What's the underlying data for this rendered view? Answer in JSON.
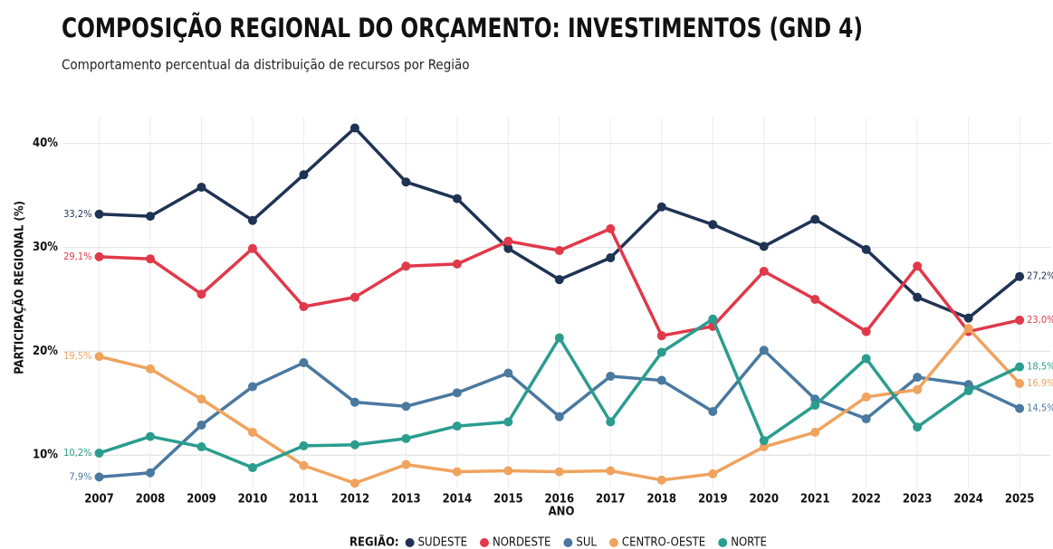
{
  "chart_data": {
    "type": "line",
    "title": "COMPOSIÇÃO REGIONAL DO ORÇAMENTO: INVESTIMENTOS (GND 4)",
    "subtitle": "Comportamento percentual da distribuição de recursos por Região",
    "x_label": "ANO",
    "y_label": "PARTICIPAÇÃO REGIONAL (%)",
    "legend_title": "REGIÃO:",
    "x": [
      2007,
      2008,
      2009,
      2010,
      2011,
      2012,
      2013,
      2014,
      2015,
      2016,
      2017,
      2018,
      2019,
      2020,
      2021,
      2022,
      2023,
      2024,
      2025
    ],
    "xlim": [
      2006.3,
      2025.6
    ],
    "xticks": [
      2007,
      2008,
      2009,
      2010,
      2011,
      2012,
      2013,
      2014,
      2015,
      2016,
      2017,
      2018,
      2019,
      2020,
      2021,
      2022,
      2023,
      2024,
      2025
    ],
    "ylim": [
      6.8,
      42.5
    ],
    "yticks": [
      {
        "value": 10,
        "label": "10%"
      },
      {
        "value": 20,
        "label": "20%"
      },
      {
        "value": 30,
        "label": "30%"
      },
      {
        "value": 40,
        "label": "40%"
      }
    ],
    "grid": true,
    "legend": "bottom",
    "series": [
      {
        "name": "SUDESTE",
        "color": "#1f3354",
        "values": [
          33.2,
          33.0,
          35.8,
          32.6,
          37.0,
          41.5,
          36.3,
          34.7,
          29.9,
          26.9,
          29.0,
          33.9,
          32.2,
          30.1,
          32.7,
          29.8,
          25.2,
          23.2,
          27.2
        ],
        "value_labels": [
          "33,2%",
          null,
          null,
          null,
          null,
          null,
          null,
          null,
          null,
          null,
          null,
          null,
          null,
          null,
          null,
          null,
          null,
          null,
          "27,2%"
        ]
      },
      {
        "name": "NORDESTE",
        "color": "#e0394a",
        "values": [
          29.1,
          28.9,
          25.5,
          29.9,
          24.3,
          25.2,
          28.2,
          28.4,
          30.6,
          29.7,
          31.8,
          21.5,
          22.4,
          27.7,
          25.0,
          21.9,
          28.2,
          21.9,
          23.0
        ],
        "value_labels": [
          "29,1%",
          null,
          null,
          null,
          null,
          null,
          null,
          null,
          null,
          null,
          null,
          null,
          null,
          null,
          null,
          null,
          null,
          null,
          "23,0%"
        ]
      },
      {
        "name": "SUL",
        "color": "#4a79a0",
        "values": [
          7.9,
          8.3,
          12.9,
          16.6,
          18.9,
          15.1,
          14.7,
          16.0,
          17.9,
          13.7,
          17.6,
          17.2,
          14.2,
          20.1,
          15.4,
          13.5,
          17.5,
          16.8,
          14.5
        ],
        "value_labels": [
          "7,9%",
          null,
          null,
          null,
          null,
          null,
          null,
          null,
          null,
          null,
          null,
          null,
          null,
          null,
          null,
          null,
          null,
          null,
          "14,5%"
        ]
      },
      {
        "name": "CENTRO-OESTE",
        "color": "#f0a35e",
        "values": [
          19.5,
          18.3,
          15.4,
          12.2,
          9.0,
          7.3,
          9.1,
          8.4,
          8.5,
          8.4,
          8.5,
          7.6,
          8.2,
          10.8,
          12.2,
          15.6,
          16.3,
          22.2,
          16.9
        ],
        "value_labels": [
          "19,5%",
          null,
          null,
          null,
          null,
          null,
          null,
          null,
          null,
          null,
          null,
          null,
          null,
          null,
          null,
          null,
          null,
          null,
          "16,9%"
        ]
      },
      {
        "name": "NORTE",
        "color": "#2a9d8f",
        "values": [
          10.2,
          11.8,
          10.8,
          8.8,
          10.9,
          11.0,
          11.6,
          12.8,
          13.2,
          21.3,
          13.2,
          19.9,
          23.1,
          11.4,
          14.8,
          19.3,
          12.7,
          16.2,
          18.5
        ],
        "value_labels": [
          "10,2%",
          null,
          null,
          null,
          null,
          null,
          null,
          null,
          null,
          null,
          null,
          null,
          null,
          null,
          null,
          null,
          null,
          null,
          "18,5%"
        ]
      }
    ]
  }
}
